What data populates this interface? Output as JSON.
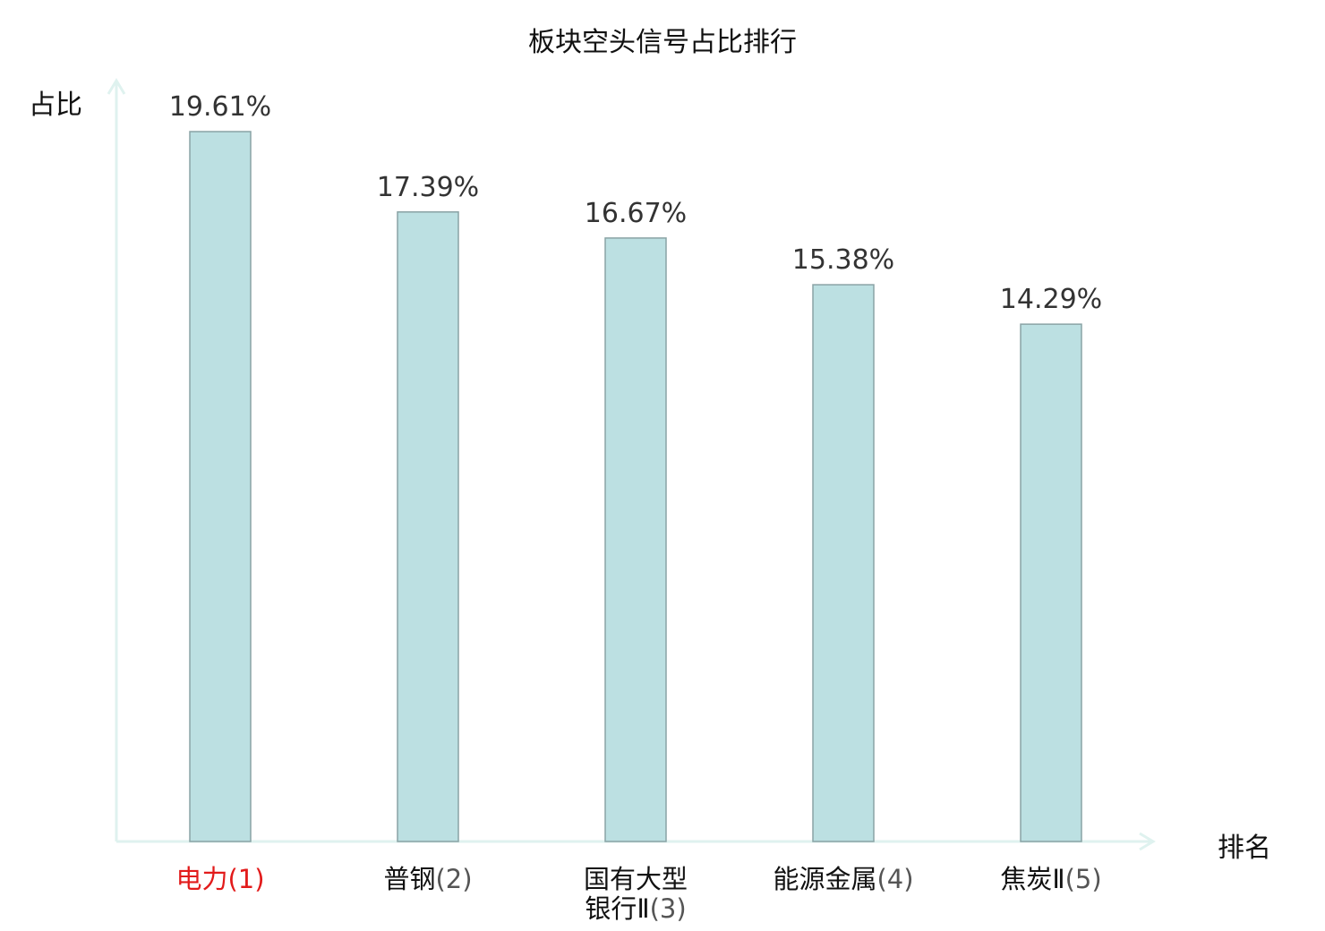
{
  "chart_data": {
    "type": "bar",
    "title": "板块空头信号占比排行",
    "ylabel": "占比",
    "xlabel": "排名",
    "categories": [
      {
        "name": "电力",
        "rank": "(1)",
        "highlight": true
      },
      {
        "name": "普钢",
        "rank": "(2)",
        "highlight": false
      },
      {
        "name": "国有大型银行Ⅱ",
        "rank": "(3)",
        "highlight": false
      },
      {
        "name": "能源金属",
        "rank": "(4)",
        "highlight": false
      },
      {
        "name": "焦炭Ⅱ",
        "rank": "(5)",
        "highlight": false
      }
    ],
    "values": [
      19.61,
      17.39,
      16.67,
      15.38,
      14.29
    ],
    "value_labels": [
      "19.61%",
      "17.39%",
      "16.67%",
      "15.38%",
      "14.29%"
    ],
    "ylim": [
      0,
      19.61
    ],
    "grid": false,
    "bar_color": "#bce0e2",
    "bar_edge_color": "#8aa3a5",
    "axis_color": "#dff2ef",
    "highlight_color": "#e21b1b"
  }
}
